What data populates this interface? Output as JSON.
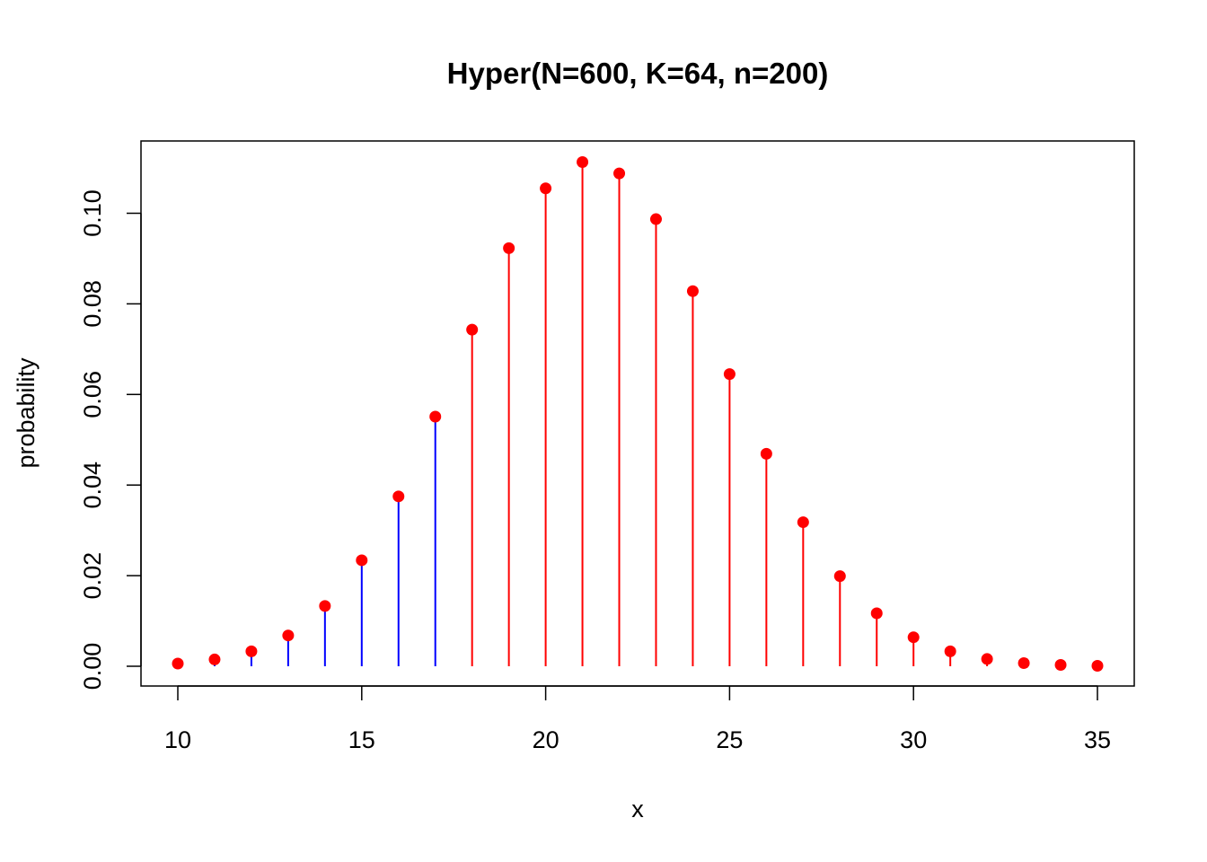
{
  "chart_data": {
    "type": "line",
    "title": "Hyper(N=600, K=64, n=200)",
    "xlabel": "x",
    "ylabel": "probability",
    "xlim": [
      10,
      35
    ],
    "ylim": [
      0,
      0.11
    ],
    "x_ticks": [
      "10",
      "15",
      "20",
      "25",
      "30",
      "35"
    ],
    "y_ticks": [
      "0.00",
      "0.02",
      "0.04",
      "0.06",
      "0.08",
      "0.10"
    ],
    "grid": false,
    "legend": "none",
    "series": [
      {
        "x": [
          10,
          11,
          12,
          13,
          14,
          15,
          16,
          17,
          18,
          19,
          20,
          21,
          22,
          23,
          24,
          25,
          26,
          27,
          28,
          29,
          30,
          31,
          32,
          33,
          34,
          35
        ],
        "values": [
          0.0006,
          0.0015,
          0.0033,
          0.0068,
          0.0133,
          0.0234,
          0.0375,
          0.0551,
          0.0743,
          0.0923,
          0.1055,
          0.1113,
          0.1088,
          0.0987,
          0.0828,
          0.0645,
          0.0469,
          0.0318,
          0.0199,
          0.0117,
          0.0064,
          0.0033,
          0.0016,
          0.0007,
          0.0003,
          0.0001
        ],
        "stem_colors": [
          "#0000ff",
          "#0000ff",
          "#0000ff",
          "#0000ff",
          "#0000ff",
          "#0000ff",
          "#0000ff",
          "#0000ff",
          "#ff0000",
          "#ff0000",
          "#ff0000",
          "#ff0000",
          "#ff0000",
          "#ff0000",
          "#ff0000",
          "#ff0000",
          "#ff0000",
          "#ff0000",
          "#ff0000",
          "#ff0000",
          "#ff0000",
          "#ff0000",
          "#ff0000",
          "#ff0000",
          "#ff0000",
          "#ff0000"
        ],
        "point_color": "#ff0000"
      }
    ]
  }
}
